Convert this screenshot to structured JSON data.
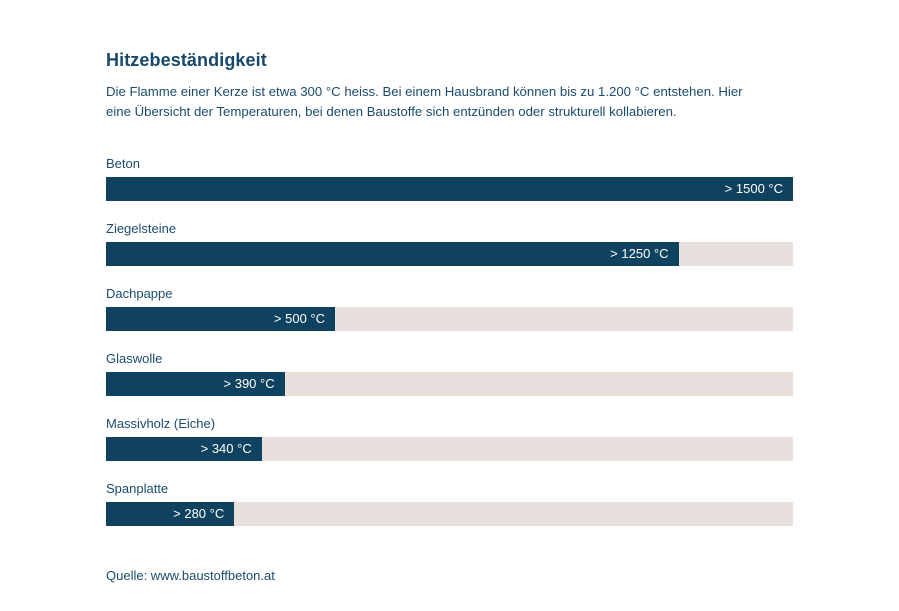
{
  "title": "Hitzebeständigkeit",
  "description": {
    "lines": [
      "Die Flamme einer Kerze ist etwa 300 °C heiss. Bei einem Hausbrand können bis zu 1.200 °C entstehen. Hier",
      "eine Übersicht der Temperaturen, bei denen Baustoffe sich entzünden oder strukturell kollabieren."
    ]
  },
  "source": "Quelle: www.baustoffbeton.at",
  "colors": {
    "bar": "#0e425f",
    "track": "#e7dfdc",
    "text": "#1b4c6d",
    "value_text": "#ffffff",
    "background": "#ffffff"
  },
  "chart_data": {
    "type": "bar",
    "orientation": "horizontal",
    "title": "Hitzebeständigkeit",
    "categories": [
      "Beton",
      "Ziegelsteine",
      "Dachpappe",
      "Glaswolle",
      "Massivholz (Eiche)",
      "Spanplatte"
    ],
    "values": [
      1500,
      1250,
      500,
      390,
      340,
      280
    ],
    "value_labels": [
      "> 1500 °C",
      "> 1250 °C",
      "> 500 °C",
      "> 390 °C",
      "> 340 °C",
      "> 280 °C"
    ],
    "unit": "°C",
    "xlim": [
      0,
      1500
    ],
    "grid": false,
    "legend": false,
    "value_label_position": "inside-end"
  }
}
